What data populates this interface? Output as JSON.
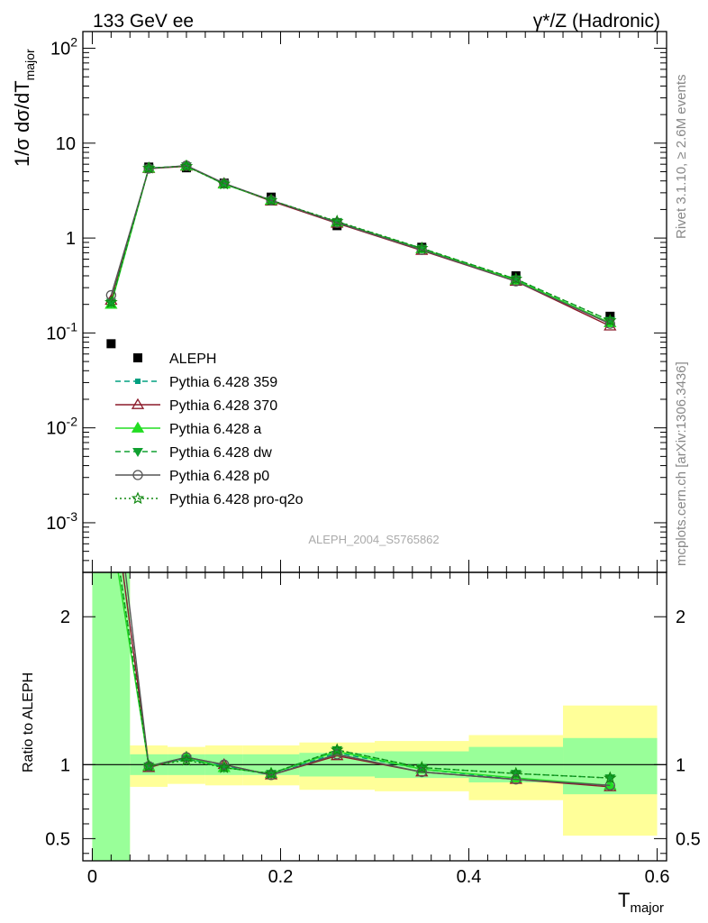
{
  "header": {
    "left_title": "133 GeV ee",
    "right_title": "γ*/Z (Hadronic)"
  },
  "side_labels": {
    "rivet": "Rivet 3.1.10, ≥ 2.6M events",
    "mcplots": "mcplots.cern.ch [arXiv:1306.3436]"
  },
  "analysis_label": "ALEPH_2004_S5765862",
  "chart_data": [
    {
      "type": "line",
      "panel": "main",
      "title": "",
      "xlabel": "T_major",
      "ylabel": "1/σ dσ/dT_major",
      "yscale": "log",
      "ylim": [
        0.0003,
        150
      ],
      "xlim": [
        -0.01,
        0.61
      ],
      "ytick_labels": [
        "10^-3",
        "10^-2",
        "10^-1",
        "1",
        "10",
        "10^2"
      ],
      "legend_position": "lower-left",
      "x": [
        0.02,
        0.06,
        0.1,
        0.14,
        0.19,
        0.26,
        0.35,
        0.45,
        0.55
      ],
      "series": [
        {
          "name": "ALEPH",
          "style": "data",
          "color": "#000000",
          "marker": "square",
          "values": [
            0.077,
            5.6,
            5.5,
            3.8,
            2.7,
            1.35,
            0.8,
            0.4,
            0.15
          ]
        },
        {
          "name": "Pythia 6.428 359",
          "color": "#00a080",
          "dash": "dashed",
          "marker": "smallsquare",
          "values": [
            0.22,
            5.5,
            5.7,
            3.75,
            2.5,
            1.45,
            0.76,
            0.36,
            0.128
          ]
        },
        {
          "name": "Pythia 6.428 370",
          "color": "#8b1a2a",
          "dash": "solid",
          "marker": "open-triangle",
          "values": [
            0.22,
            5.4,
            5.7,
            3.75,
            2.45,
            1.43,
            0.74,
            0.35,
            0.118
          ]
        },
        {
          "name": "Pythia 6.428 a",
          "color": "#22dd22",
          "dash": "solid",
          "marker": "triangle",
          "values": [
            0.2,
            5.45,
            5.75,
            3.7,
            2.5,
            1.47,
            0.77,
            0.36,
            0.128
          ]
        },
        {
          "name": "Pythia 6.428 dw",
          "color": "#10a030",
          "dash": "dashed",
          "marker": "down-triangle",
          "values": [
            0.21,
            5.45,
            5.75,
            3.72,
            2.5,
            1.49,
            0.78,
            0.37,
            0.135
          ]
        },
        {
          "name": "Pythia 6.428 p0",
          "color": "#555555",
          "dash": "solid",
          "marker": "open-circle",
          "values": [
            0.25,
            5.4,
            5.8,
            3.78,
            2.5,
            1.45,
            0.75,
            0.35,
            0.125
          ]
        },
        {
          "name": "Pythia 6.428 pro-q2o",
          "color": "#118811",
          "dash": "dotted",
          "marker": "star",
          "values": [
            0.21,
            5.45,
            5.7,
            3.72,
            2.5,
            1.5,
            0.78,
            0.37,
            0.135
          ]
        }
      ]
    },
    {
      "type": "line",
      "panel": "ratio",
      "title": "",
      "xlabel": "T_major",
      "ylabel": "Ratio to ALEPH",
      "ylim": [
        0.35,
        2.3
      ],
      "xlim": [
        -0.01,
        0.61
      ],
      "yticks": [
        0.5,
        1,
        2
      ],
      "ytick_labels": [
        "0.5",
        "1",
        "2"
      ],
      "xticks": [
        0,
        0.2,
        0.4,
        0.6
      ],
      "xtick_labels": [
        "0",
        "0.2",
        "0.4",
        "0.6"
      ],
      "reference_line": 1,
      "bins": [
        {
          "lo": 0.0,
          "hi": 0.04,
          "green": [
            0.35,
            2.3
          ],
          "yellow": [
            0.35,
            2.3
          ]
        },
        {
          "lo": 0.04,
          "hi": 0.08,
          "green": [
            0.93,
            1.07
          ],
          "yellow": [
            0.85,
            1.13
          ]
        },
        {
          "lo": 0.08,
          "hi": 0.12,
          "green": [
            0.93,
            1.07
          ],
          "yellow": [
            0.87,
            1.12
          ]
        },
        {
          "lo": 0.12,
          "hi": 0.16,
          "green": [
            0.93,
            1.07
          ],
          "yellow": [
            0.86,
            1.13
          ]
        },
        {
          "lo": 0.16,
          "hi": 0.22,
          "green": [
            0.93,
            1.07
          ],
          "yellow": [
            0.86,
            1.13
          ]
        },
        {
          "lo": 0.22,
          "hi": 0.3,
          "green": [
            0.92,
            1.08
          ],
          "yellow": [
            0.83,
            1.15
          ]
        },
        {
          "lo": 0.3,
          "hi": 0.4,
          "green": [
            0.91,
            1.09
          ],
          "yellow": [
            0.82,
            1.16
          ]
        },
        {
          "lo": 0.4,
          "hi": 0.5,
          "green": [
            0.88,
            1.12
          ],
          "yellow": [
            0.76,
            1.2
          ]
        },
        {
          "lo": 0.5,
          "hi": 0.6,
          "green": [
            0.8,
            1.18
          ],
          "yellow": [
            0.52,
            1.4
          ]
        }
      ],
      "x": [
        0.02,
        0.06,
        0.1,
        0.14,
        0.19,
        0.26,
        0.35,
        0.45,
        0.55
      ],
      "series": [
        {
          "name": "Pythia 6.428 359",
          "color": "#00a080",
          "dash": "dashed",
          "marker": "smallsquare",
          "values": [
            2.9,
            0.99,
            1.04,
            0.99,
            0.93,
            1.08,
            0.97,
            0.9,
            0.86
          ]
        },
        {
          "name": "Pythia 6.428 370",
          "color": "#8b1a2a",
          "dash": "solid",
          "marker": "open-triangle",
          "values": [
            2.9,
            0.98,
            1.05,
            1.0,
            0.93,
            1.06,
            0.95,
            0.9,
            0.85
          ]
        },
        {
          "name": "Pythia 6.428 a",
          "color": "#22dd22",
          "dash": "solid",
          "marker": "triangle",
          "values": [
            2.6,
            0.99,
            1.05,
            0.98,
            0.94,
            1.09,
            0.97,
            0.91,
            0.86
          ]
        },
        {
          "name": "Pythia 6.428 dw",
          "color": "#10a030",
          "dash": "dashed",
          "marker": "down-triangle",
          "values": [
            2.7,
            0.99,
            1.04,
            0.98,
            0.94,
            1.1,
            0.98,
            0.94,
            0.91
          ]
        },
        {
          "name": "Pythia 6.428 p0",
          "color": "#555555",
          "dash": "solid",
          "marker": "open-circle",
          "values": [
            3.1,
            0.99,
            1.05,
            1.0,
            0.93,
            1.07,
            0.95,
            0.9,
            0.86
          ]
        },
        {
          "name": "Pythia 6.428 pro-q2o",
          "color": "#118811",
          "dash": "dotted",
          "marker": "star",
          "values": [
            2.7,
            0.99,
            1.03,
            0.98,
            0.94,
            1.1,
            0.98,
            0.94,
            0.91
          ]
        }
      ]
    }
  ]
}
